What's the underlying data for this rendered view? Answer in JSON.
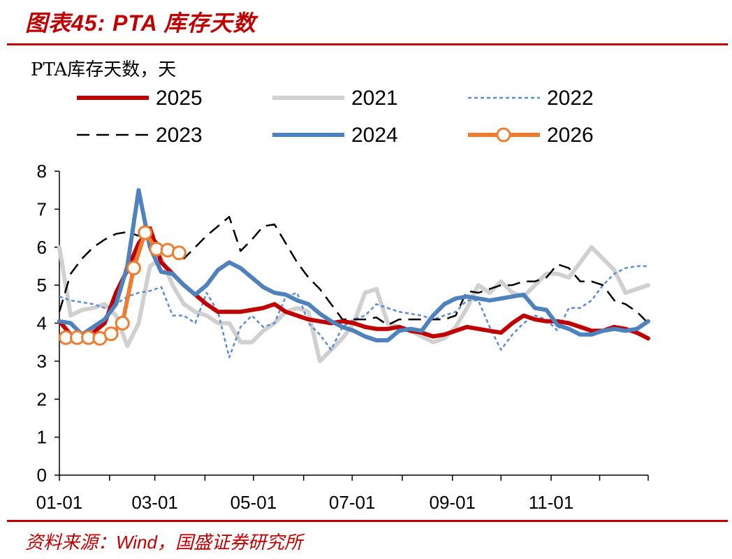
{
  "header": {
    "figure_title": "图表45:  PTA 库存天数"
  },
  "footer": {
    "source": "资料来源：Wind，国盛证券研究所"
  },
  "colors": {
    "accent": "#c00000",
    "s2025": "#c00000",
    "s2021": "#d0d0d0",
    "s2022": "#5b8bd0",
    "s2023": "#000000",
    "s2024": "#4f81bd",
    "s2026": "#ed7d31"
  },
  "chart_data": {
    "type": "line",
    "title": "",
    "ylabel": "PTA库存天数，天",
    "xlabel": "",
    "ylim": [
      0,
      8
    ],
    "yticks": [
      0,
      1,
      2,
      3,
      4,
      5,
      6,
      7,
      8
    ],
    "xlim": [
      "01-01",
      "12-31"
    ],
    "xticks": [
      "01-01",
      "03-01",
      "05-01",
      "07-01",
      "09-01",
      "11-01"
    ],
    "grid": false,
    "legend_position": "top",
    "series": [
      {
        "name": "2025",
        "style": "solid-thick",
        "points": [
          [
            "01-01",
            4.05
          ],
          [
            "01-08",
            3.7
          ],
          [
            "01-15",
            3.6
          ],
          [
            "01-22",
            3.75
          ],
          [
            "01-29",
            4.0
          ],
          [
            "02-05",
            4.8
          ],
          [
            "02-12",
            5.4
          ],
          [
            "02-19",
            6.1
          ],
          [
            "02-26",
            6.5
          ],
          [
            "03-05",
            5.6
          ],
          [
            "03-12",
            5.3
          ],
          [
            "03-19",
            5.0
          ],
          [
            "03-26",
            4.75
          ],
          [
            "04-02",
            4.5
          ],
          [
            "04-09",
            4.3
          ],
          [
            "04-16",
            4.3
          ],
          [
            "04-23",
            4.3
          ],
          [
            "04-30",
            4.35
          ],
          [
            "05-07",
            4.4
          ],
          [
            "05-14",
            4.5
          ],
          [
            "05-21",
            4.3
          ],
          [
            "05-28",
            4.2
          ],
          [
            "06-04",
            4.1
          ],
          [
            "06-11",
            4.05
          ],
          [
            "06-18",
            4.0
          ],
          [
            "06-25",
            4.05
          ],
          [
            "07-02",
            4.0
          ],
          [
            "07-09",
            3.9
          ],
          [
            "07-16",
            3.85
          ],
          [
            "07-23",
            3.85
          ],
          [
            "07-30",
            3.9
          ],
          [
            "08-06",
            3.8
          ],
          [
            "08-13",
            3.75
          ],
          [
            "08-20",
            3.65
          ],
          [
            "08-27",
            3.7
          ],
          [
            "09-03",
            3.8
          ],
          [
            "09-10",
            3.9
          ],
          [
            "09-17",
            3.85
          ],
          [
            "09-24",
            3.8
          ],
          [
            "10-01",
            3.75
          ],
          [
            "10-08",
            4.0
          ],
          [
            "10-15",
            4.2
          ],
          [
            "10-22",
            4.1
          ],
          [
            "10-29",
            4.05
          ],
          [
            "11-05",
            4.05
          ],
          [
            "11-12",
            4.0
          ],
          [
            "11-19",
            3.9
          ],
          [
            "11-26",
            3.8
          ],
          [
            "12-03",
            3.8
          ],
          [
            "12-10",
            3.9
          ],
          [
            "12-17",
            3.85
          ],
          [
            "12-24",
            3.75
          ],
          [
            "12-31",
            3.6
          ]
        ]
      },
      {
        "name": "2021",
        "style": "solid-thick",
        "points": [
          [
            "01-01",
            6.0
          ],
          [
            "01-08",
            4.2
          ],
          [
            "01-15",
            4.35
          ],
          [
            "01-22",
            4.4
          ],
          [
            "01-29",
            4.5
          ],
          [
            "02-05",
            4.2
          ],
          [
            "02-12",
            3.4
          ],
          [
            "02-19",
            4.0
          ],
          [
            "02-26",
            5.5
          ],
          [
            "03-05",
            5.7
          ],
          [
            "03-12",
            5.0
          ],
          [
            "03-19",
            4.5
          ],
          [
            "03-26",
            4.3
          ],
          [
            "04-02",
            4.2
          ],
          [
            "04-09",
            4.0
          ],
          [
            "04-16",
            4.0
          ],
          [
            "04-23",
            3.5
          ],
          [
            "04-30",
            3.5
          ],
          [
            "05-07",
            3.8
          ],
          [
            "05-14",
            4.0
          ],
          [
            "05-21",
            4.3
          ],
          [
            "05-28",
            4.4
          ],
          [
            "06-04",
            4.3
          ],
          [
            "06-11",
            3.0
          ],
          [
            "06-18",
            3.3
          ],
          [
            "06-25",
            3.6
          ],
          [
            "07-02",
            4.0
          ],
          [
            "07-09",
            4.8
          ],
          [
            "07-16",
            4.9
          ],
          [
            "07-23",
            4.0
          ],
          [
            "07-30",
            3.9
          ],
          [
            "08-06",
            3.8
          ],
          [
            "08-13",
            3.65
          ],
          [
            "08-20",
            3.5
          ],
          [
            "08-27",
            3.6
          ],
          [
            "09-03",
            3.9
          ],
          [
            "09-10",
            4.4
          ],
          [
            "09-17",
            5.0
          ],
          [
            "09-24",
            4.8
          ],
          [
            "10-01",
            5.1
          ],
          [
            "10-08",
            4.8
          ],
          [
            "10-15",
            4.7
          ],
          [
            "10-22",
            5.0
          ],
          [
            "10-29",
            5.3
          ],
          [
            "11-05",
            5.3
          ],
          [
            "11-12",
            5.2
          ],
          [
            "11-19",
            5.6
          ],
          [
            "11-26",
            6.0
          ],
          [
            "12-03",
            5.7
          ],
          [
            "12-10",
            5.4
          ],
          [
            "12-17",
            4.8
          ],
          [
            "12-24",
            4.9
          ],
          [
            "12-31",
            5.0
          ]
        ]
      },
      {
        "name": "2022",
        "style": "dotted",
        "points": [
          [
            "01-01",
            4.7
          ],
          [
            "01-08",
            4.6
          ],
          [
            "01-15",
            4.55
          ],
          [
            "01-22",
            4.5
          ],
          [
            "01-29",
            4.4
          ],
          [
            "02-05",
            4.5
          ],
          [
            "02-12",
            4.7
          ],
          [
            "02-19",
            4.8
          ],
          [
            "02-26",
            4.85
          ],
          [
            "03-05",
            4.95
          ],
          [
            "03-12",
            4.2
          ],
          [
            "03-19",
            4.2
          ],
          [
            "03-26",
            4.0
          ],
          [
            "04-02",
            4.8
          ],
          [
            "04-09",
            4.3
          ],
          [
            "04-16",
            3.1
          ],
          [
            "04-23",
            3.9
          ],
          [
            "04-30",
            4.2
          ],
          [
            "05-07",
            3.9
          ],
          [
            "05-14",
            4.0
          ],
          [
            "05-21",
            4.7
          ],
          [
            "05-28",
            4.8
          ],
          [
            "06-04",
            4.0
          ],
          [
            "06-11",
            3.7
          ],
          [
            "06-18",
            3.3
          ],
          [
            "06-25",
            3.9
          ],
          [
            "07-02",
            4.1
          ],
          [
            "07-09",
            4.2
          ],
          [
            "07-16",
            4.5
          ],
          [
            "07-23",
            4.4
          ],
          [
            "07-30",
            4.3
          ],
          [
            "08-06",
            4.25
          ],
          [
            "08-13",
            4.2
          ],
          [
            "08-20",
            4.1
          ],
          [
            "08-27",
            4.2
          ],
          [
            "09-03",
            4.3
          ],
          [
            "09-10",
            4.6
          ],
          [
            "09-17",
            4.6
          ],
          [
            "09-24",
            3.9
          ],
          [
            "10-01",
            3.3
          ],
          [
            "10-08",
            3.7
          ],
          [
            "10-15",
            4.0
          ],
          [
            "10-22",
            4.2
          ],
          [
            "10-29",
            4.1
          ],
          [
            "11-05",
            3.8
          ],
          [
            "11-12",
            4.4
          ],
          [
            "11-19",
            4.4
          ],
          [
            "11-26",
            4.6
          ],
          [
            "12-03",
            5.0
          ],
          [
            "12-10",
            5.3
          ],
          [
            "12-17",
            5.45
          ],
          [
            "12-24",
            5.5
          ],
          [
            "12-31",
            5.5
          ]
        ]
      },
      {
        "name": "2023",
        "style": "dashed",
        "points": [
          [
            "01-01",
            4.3
          ],
          [
            "01-08",
            5.3
          ],
          [
            "01-15",
            5.7
          ],
          [
            "01-22",
            6.0
          ],
          [
            "01-29",
            6.2
          ],
          [
            "02-05",
            6.35
          ],
          [
            "02-12",
            6.4
          ],
          [
            "02-19",
            6.3
          ],
          [
            "02-26",
            6.35
          ],
          [
            "03-05",
            6.0
          ],
          [
            "03-12",
            5.8
          ],
          [
            "03-19",
            5.7
          ],
          [
            "03-26",
            6.0
          ],
          [
            "04-02",
            6.3
          ],
          [
            "04-09",
            6.55
          ],
          [
            "04-16",
            6.8
          ],
          [
            "04-23",
            5.9
          ],
          [
            "04-30",
            6.2
          ],
          [
            "05-07",
            6.55
          ],
          [
            "05-14",
            6.6
          ],
          [
            "05-21",
            6.1
          ],
          [
            "05-28",
            5.6
          ],
          [
            "06-04",
            5.2
          ],
          [
            "06-11",
            4.9
          ],
          [
            "06-18",
            4.5
          ],
          [
            "06-25",
            4.1
          ],
          [
            "07-02",
            4.1
          ],
          [
            "07-09",
            4.1
          ],
          [
            "07-16",
            4.15
          ],
          [
            "07-23",
            3.95
          ],
          [
            "07-30",
            4.1
          ],
          [
            "08-06",
            4.1
          ],
          [
            "08-13",
            4.1
          ],
          [
            "08-20",
            4.1
          ],
          [
            "08-27",
            4.1
          ],
          [
            "09-03",
            4.2
          ],
          [
            "09-10",
            4.85
          ],
          [
            "09-17",
            4.8
          ],
          [
            "09-24",
            4.9
          ],
          [
            "10-01",
            5.0
          ],
          [
            "10-08",
            5.0
          ],
          [
            "10-15",
            5.1
          ],
          [
            "10-22",
            5.1
          ],
          [
            "10-29",
            5.2
          ],
          [
            "11-05",
            5.55
          ],
          [
            "11-12",
            5.45
          ],
          [
            "11-19",
            5.1
          ],
          [
            "11-26",
            5.1
          ],
          [
            "12-03",
            5.0
          ],
          [
            "12-10",
            4.6
          ],
          [
            "12-17",
            4.5
          ],
          [
            "12-24",
            4.3
          ],
          [
            "12-31",
            4.0
          ]
        ]
      },
      {
        "name": "2024",
        "style": "solid-thick",
        "points": [
          [
            "01-01",
            4.05
          ],
          [
            "01-08",
            4.0
          ],
          [
            "01-15",
            3.7
          ],
          [
            "01-22",
            3.9
          ],
          [
            "01-29",
            4.1
          ],
          [
            "02-05",
            4.5
          ],
          [
            "02-12",
            5.5
          ],
          [
            "02-19",
            7.5
          ],
          [
            "02-26",
            6.0
          ],
          [
            "03-05",
            5.35
          ],
          [
            "03-12",
            5.3
          ],
          [
            "03-19",
            5.0
          ],
          [
            "03-26",
            4.75
          ],
          [
            "04-02",
            5.0
          ],
          [
            "04-09",
            5.4
          ],
          [
            "04-16",
            5.6
          ],
          [
            "04-23",
            5.45
          ],
          [
            "04-30",
            5.2
          ],
          [
            "05-07",
            4.95
          ],
          [
            "05-14",
            4.8
          ],
          [
            "05-21",
            4.75
          ],
          [
            "05-28",
            4.6
          ],
          [
            "06-04",
            4.5
          ],
          [
            "06-11",
            4.25
          ],
          [
            "06-18",
            4.05
          ],
          [
            "06-25",
            3.9
          ],
          [
            "07-02",
            3.8
          ],
          [
            "07-09",
            3.65
          ],
          [
            "07-16",
            3.55
          ],
          [
            "07-23",
            3.55
          ],
          [
            "07-30",
            3.8
          ],
          [
            "08-06",
            3.85
          ],
          [
            "08-13",
            3.8
          ],
          [
            "08-20",
            4.2
          ],
          [
            "08-27",
            4.5
          ],
          [
            "09-03",
            4.65
          ],
          [
            "09-10",
            4.7
          ],
          [
            "09-17",
            4.65
          ],
          [
            "09-24",
            4.6
          ],
          [
            "10-01",
            4.65
          ],
          [
            "10-08",
            4.7
          ],
          [
            "10-15",
            4.75
          ],
          [
            "10-22",
            4.4
          ],
          [
            "10-29",
            4.35
          ],
          [
            "11-05",
            3.95
          ],
          [
            "11-12",
            3.85
          ],
          [
            "11-19",
            3.7
          ],
          [
            "11-26",
            3.7
          ],
          [
            "12-03",
            3.8
          ],
          [
            "12-10",
            3.85
          ],
          [
            "12-17",
            3.8
          ],
          [
            "12-24",
            3.85
          ],
          [
            "12-31",
            4.05
          ]
        ]
      },
      {
        "name": "2026",
        "style": "solid-markers",
        "points": [
          [
            "01-05",
            3.62
          ],
          [
            "01-12",
            3.62
          ],
          [
            "01-19",
            3.62
          ],
          [
            "01-26",
            3.6
          ],
          [
            "02-02",
            3.72
          ],
          [
            "02-09",
            4.0
          ],
          [
            "02-16",
            5.45
          ],
          [
            "02-23",
            6.38
          ],
          [
            "03-02",
            5.95
          ],
          [
            "03-09",
            5.92
          ],
          [
            "03-16",
            5.85
          ]
        ]
      }
    ]
  }
}
